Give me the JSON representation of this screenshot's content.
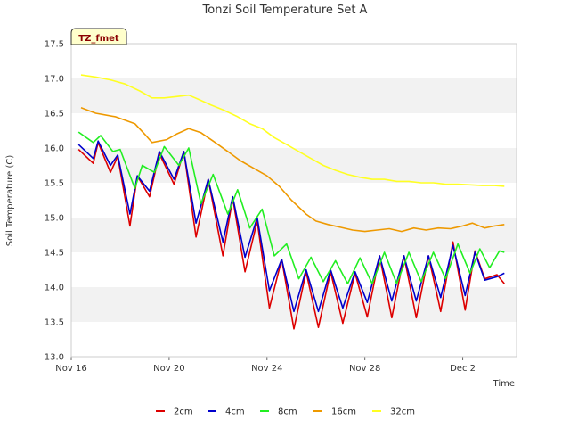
{
  "chart_data": {
    "type": "line",
    "title": "Tonzi Soil Temperature Set A",
    "xlabel": "Time",
    "ylabel": "Soil Temperature (C)",
    "badge": "TZ_fmet",
    "x_unit": "days since Nov 16",
    "xlim": [
      0,
      18.2
    ],
    "ylim": [
      13.0,
      17.5
    ],
    "yticks": [
      "13.0",
      "13.5",
      "14.0",
      "14.5",
      "15.0",
      "15.5",
      "16.0",
      "16.5",
      "17.0",
      "17.5"
    ],
    "xticks": [
      {
        "label": "Nov 16",
        "value": 0
      },
      {
        "label": "Nov 20",
        "value": 4
      },
      {
        "label": "Nov 24",
        "value": 8
      },
      {
        "label": "Nov 28",
        "value": 12
      },
      {
        "label": "Dec 2",
        "value": 16
      }
    ],
    "colors": {
      "2cm": "#dd0000",
      "4cm": "#0000cc",
      "8cm": "#22ee22",
      "16cm": "#ee9900",
      "32cm": "#ffff22"
    },
    "series": [
      {
        "name": "2cm",
        "x": [
          0.3,
          0.9,
          1.1,
          1.6,
          1.9,
          2.4,
          2.7,
          3.2,
          3.6,
          4.2,
          4.6,
          5.1,
          5.6,
          6.2,
          6.6,
          7.1,
          7.6,
          8.1,
          8.6,
          9.1,
          9.6,
          10.1,
          10.6,
          11.1,
          11.6,
          12.1,
          12.6,
          13.1,
          13.6,
          14.1,
          14.6,
          15.1,
          15.6,
          16.1,
          16.5,
          16.9,
          17.4,
          17.7
        ],
        "y": [
          15.98,
          15.78,
          16.08,
          15.65,
          15.88,
          14.88,
          15.6,
          15.3,
          15.92,
          15.48,
          15.95,
          14.72,
          15.55,
          14.45,
          15.28,
          14.22,
          14.95,
          13.7,
          14.4,
          13.4,
          14.22,
          13.42,
          14.22,
          13.48,
          14.2,
          13.57,
          14.45,
          13.56,
          14.45,
          13.56,
          14.45,
          13.65,
          14.65,
          13.67,
          14.52,
          14.12,
          14.18,
          14.05
        ]
      },
      {
        "name": "4cm",
        "x": [
          0.3,
          0.9,
          1.1,
          1.6,
          1.9,
          2.4,
          2.7,
          3.2,
          3.6,
          4.2,
          4.6,
          5.1,
          5.6,
          6.2,
          6.6,
          7.1,
          7.6,
          8.1,
          8.6,
          9.1,
          9.6,
          10.1,
          10.6,
          11.1,
          11.6,
          12.1,
          12.6,
          13.1,
          13.6,
          14.1,
          14.6,
          15.1,
          15.6,
          16.1,
          16.5,
          16.9,
          17.4,
          17.7
        ],
        "y": [
          16.05,
          15.85,
          16.1,
          15.75,
          15.9,
          15.05,
          15.6,
          15.38,
          15.95,
          15.55,
          15.95,
          14.92,
          15.55,
          14.65,
          15.3,
          14.43,
          15.0,
          13.95,
          14.4,
          13.65,
          14.25,
          13.65,
          14.25,
          13.7,
          14.22,
          13.78,
          14.45,
          13.8,
          14.45,
          13.8,
          14.45,
          13.85,
          14.6,
          13.88,
          14.5,
          14.1,
          14.15,
          14.2
        ]
      },
      {
        "name": "8cm",
        "x": [
          0.3,
          0.9,
          1.2,
          1.7,
          2.0,
          2.6,
          2.9,
          3.4,
          3.8,
          4.4,
          4.8,
          5.3,
          5.8,
          6.4,
          6.8,
          7.3,
          7.8,
          8.3,
          8.8,
          9.3,
          9.8,
          10.3,
          10.8,
          11.3,
          11.8,
          12.3,
          12.8,
          13.3,
          13.8,
          14.3,
          14.8,
          15.3,
          15.8,
          16.3,
          16.7,
          17.1,
          17.5,
          17.7
        ],
        "y": [
          16.23,
          16.08,
          16.18,
          15.95,
          15.98,
          15.42,
          15.75,
          15.65,
          16.02,
          15.75,
          16.0,
          15.2,
          15.62,
          15.05,
          15.4,
          14.85,
          15.12,
          14.45,
          14.62,
          14.12,
          14.43,
          14.08,
          14.38,
          14.05,
          14.42,
          14.05,
          14.5,
          14.05,
          14.5,
          14.08,
          14.5,
          14.12,
          14.62,
          14.2,
          14.55,
          14.28,
          14.52,
          14.5
        ]
      },
      {
        "name": "16cm",
        "x": [
          0.4,
          1.0,
          1.8,
          2.6,
          3.0,
          3.3,
          3.9,
          4.3,
          4.8,
          5.3,
          5.8,
          6.4,
          6.9,
          7.4,
          8.0,
          8.5,
          9.0,
          9.6,
          10.0,
          10.5,
          11.0,
          11.5,
          12.0,
          12.5,
          13.0,
          13.5,
          14.0,
          14.5,
          15.0,
          15.5,
          16.0,
          16.4,
          16.9,
          17.3,
          17.7
        ],
        "y": [
          16.58,
          16.5,
          16.45,
          16.35,
          16.2,
          16.08,
          16.12,
          16.2,
          16.28,
          16.22,
          16.1,
          15.95,
          15.82,
          15.72,
          15.6,
          15.45,
          15.25,
          15.05,
          14.95,
          14.9,
          14.86,
          14.82,
          14.8,
          14.82,
          14.84,
          14.8,
          14.85,
          14.82,
          14.85,
          14.84,
          14.88,
          14.92,
          14.85,
          14.88,
          14.9
        ]
      },
      {
        "name": "32cm",
        "x": [
          0.4,
          1.0,
          1.6,
          2.2,
          2.8,
          3.3,
          3.8,
          4.3,
          4.8,
          5.2,
          5.7,
          6.2,
          6.8,
          7.3,
          7.8,
          8.3,
          8.8,
          9.3,
          9.8,
          10.3,
          10.8,
          11.3,
          11.8,
          12.3,
          12.8,
          13.3,
          13.8,
          14.3,
          14.8,
          15.3,
          15.8,
          16.3,
          16.8,
          17.3,
          17.7
        ],
        "y": [
          17.05,
          17.02,
          16.98,
          16.92,
          16.82,
          16.72,
          16.72,
          16.74,
          16.76,
          16.7,
          16.62,
          16.55,
          16.45,
          16.35,
          16.28,
          16.15,
          16.05,
          15.95,
          15.85,
          15.75,
          15.68,
          15.62,
          15.58,
          15.55,
          15.55,
          15.52,
          15.52,
          15.5,
          15.5,
          15.48,
          15.48,
          15.47,
          15.46,
          15.46,
          15.45
        ]
      }
    ]
  }
}
